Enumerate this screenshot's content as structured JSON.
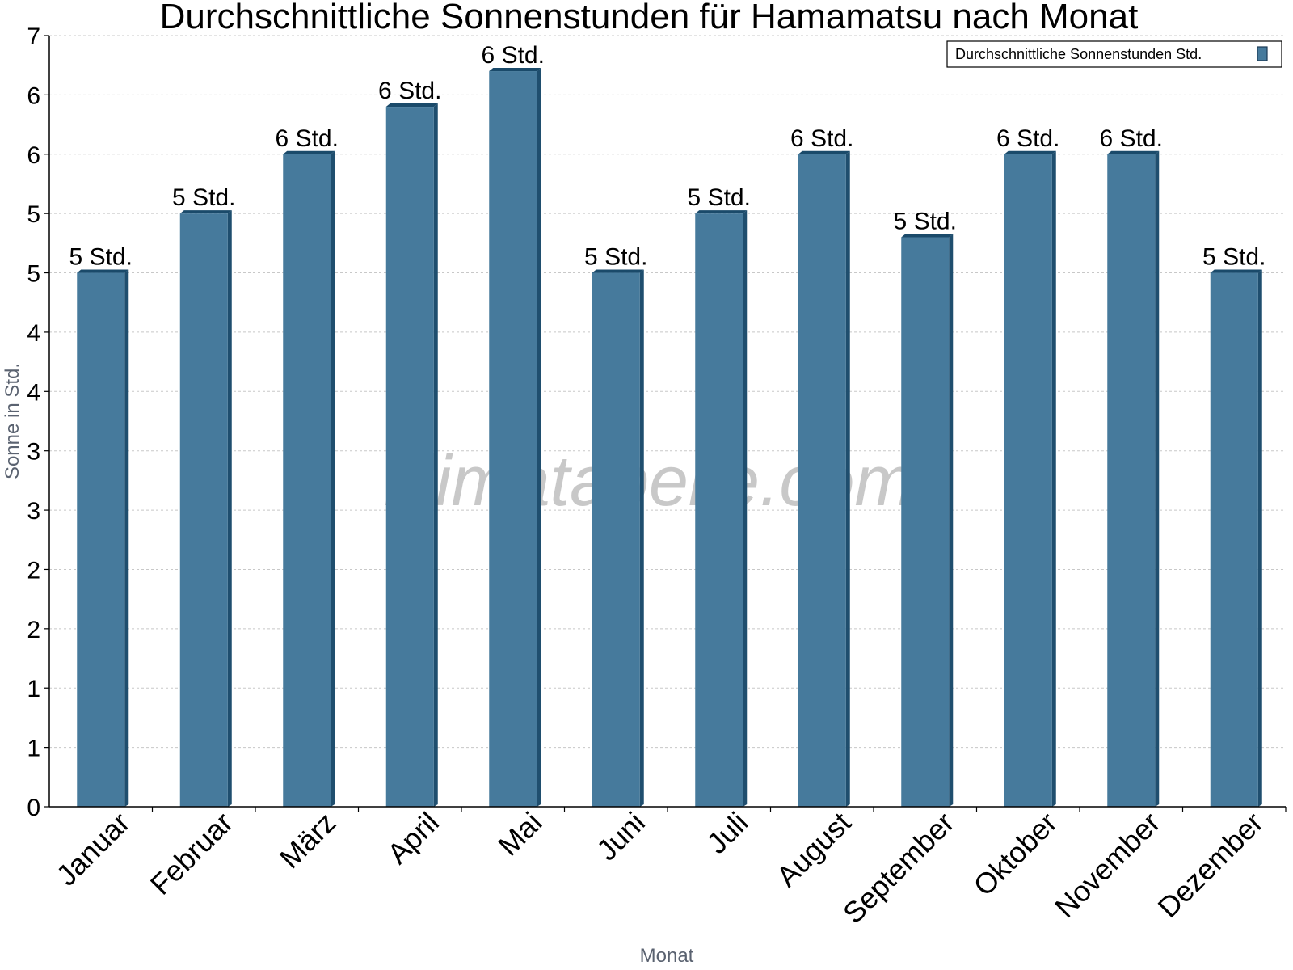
{
  "chart_data": {
    "type": "bar",
    "title": "Durchschnittliche Sonnenstunden für Hamamatsu nach Monat",
    "xlabel": "Monat",
    "ylabel": "Sonne in Std.",
    "categories": [
      "Januar",
      "Februar",
      "März",
      "April",
      "Mai",
      "Juni",
      "Juli",
      "August",
      "September",
      "Oktober",
      "November",
      "Dezember"
    ],
    "series": [
      {
        "name": "Durchschnittliche Sonnenstunden Std.",
        "values": [
          4.5,
          5.0,
          5.5,
          5.9,
          6.2,
          4.5,
          5.0,
          5.5,
          4.8,
          5.5,
          5.5,
          4.5
        ],
        "labels": [
          "5 Std.",
          "5 Std.",
          "6 Std.",
          "6 Std.",
          "6 Std.",
          "5 Std.",
          "5 Std.",
          "6 Std.",
          "5 Std.",
          "6 Std.",
          "6 Std.",
          "5 Std."
        ]
      }
    ],
    "ylim": [
      0,
      6.5
    ],
    "yticks": [
      0,
      0.5,
      1,
      1.5,
      2,
      2.5,
      3,
      3.5,
      4,
      4.5,
      5,
      5.5,
      6,
      6.5
    ],
    "ytick_labels": [
      "0",
      "1",
      "1",
      "2",
      "2",
      "3",
      "3",
      "4",
      "4",
      "5",
      "5",
      "6",
      "6",
      "7"
    ],
    "grid": true,
    "legend_position": "top-right",
    "colors": {
      "bar": "#467a9c",
      "bar_side": "#1f4e6e",
      "bar_top": "#1a4a6a",
      "grid": "#c8c8c8"
    }
  },
  "watermark": "klimatabelle.com"
}
